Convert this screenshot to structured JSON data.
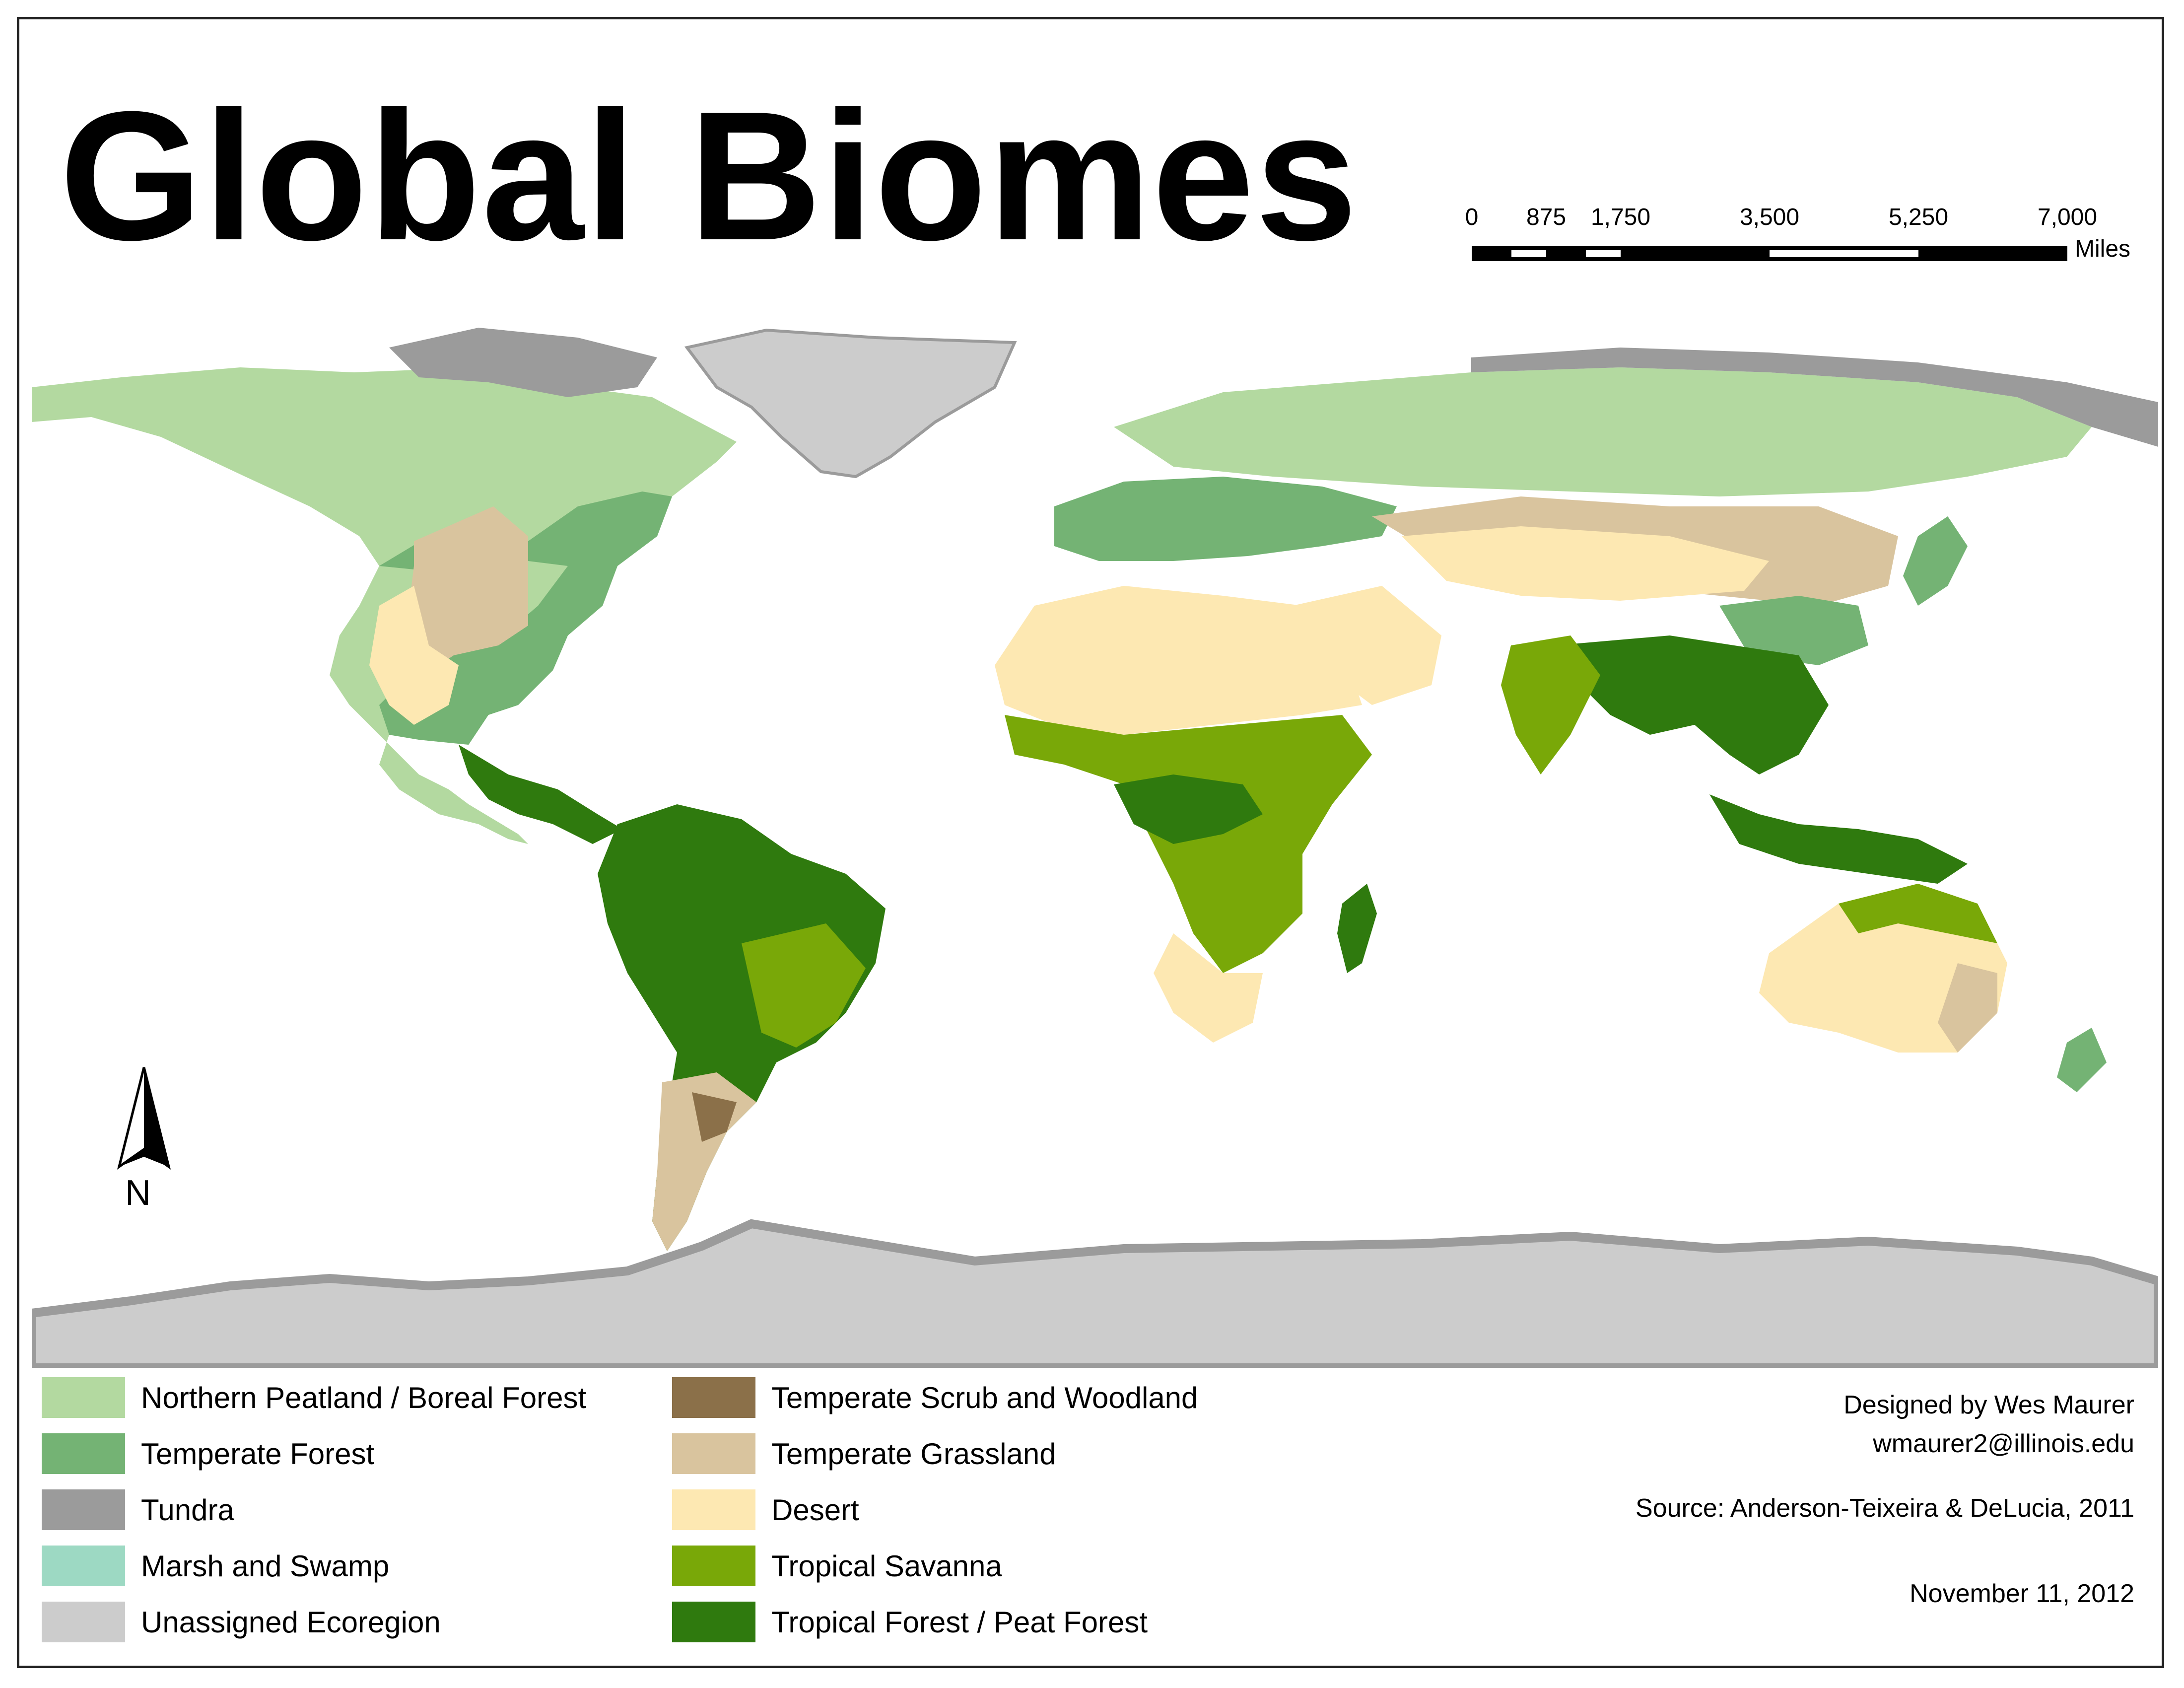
{
  "title": "Global Biomes",
  "scale_bar": {
    "ticks": [
      "0",
      "875",
      "1,750",
      "3,500",
      "5,250",
      "7,000"
    ],
    "unit": "Miles"
  },
  "north_arrow": {
    "label": "N",
    "icon": "north-arrow-icon"
  },
  "legend": [
    {
      "label": "Northern Peatland / Boreal Forest",
      "color": "#b3d9a0"
    },
    {
      "label": "Temperate Forest",
      "color": "#74b374"
    },
    {
      "label": "Tundra",
      "color": "#9b9b9b"
    },
    {
      "label": "Marsh and Swamp",
      "color": "#9dd9c3"
    },
    {
      "label": "Unassigned Ecoregion",
      "color": "#cccccc"
    },
    {
      "label": "Temperate Scrub and Woodland",
      "color": "#8b7049"
    },
    {
      "label": "Temperate Grassland",
      "color": "#d9c49e"
    },
    {
      "label": "Desert",
      "color": "#fde8b2"
    },
    {
      "label": "Tropical Savanna",
      "color": "#79a808"
    },
    {
      "label": "Tropical Forest / Peat Forest",
      "color": "#2f7a0e"
    }
  ],
  "credits": {
    "designer": "Designed by Wes Maurer",
    "email": "wmaurer2@illinois.edu",
    "source": "Source: Anderson-Teixeira & DeLucia, 2011",
    "date": "November 11, 2012"
  }
}
